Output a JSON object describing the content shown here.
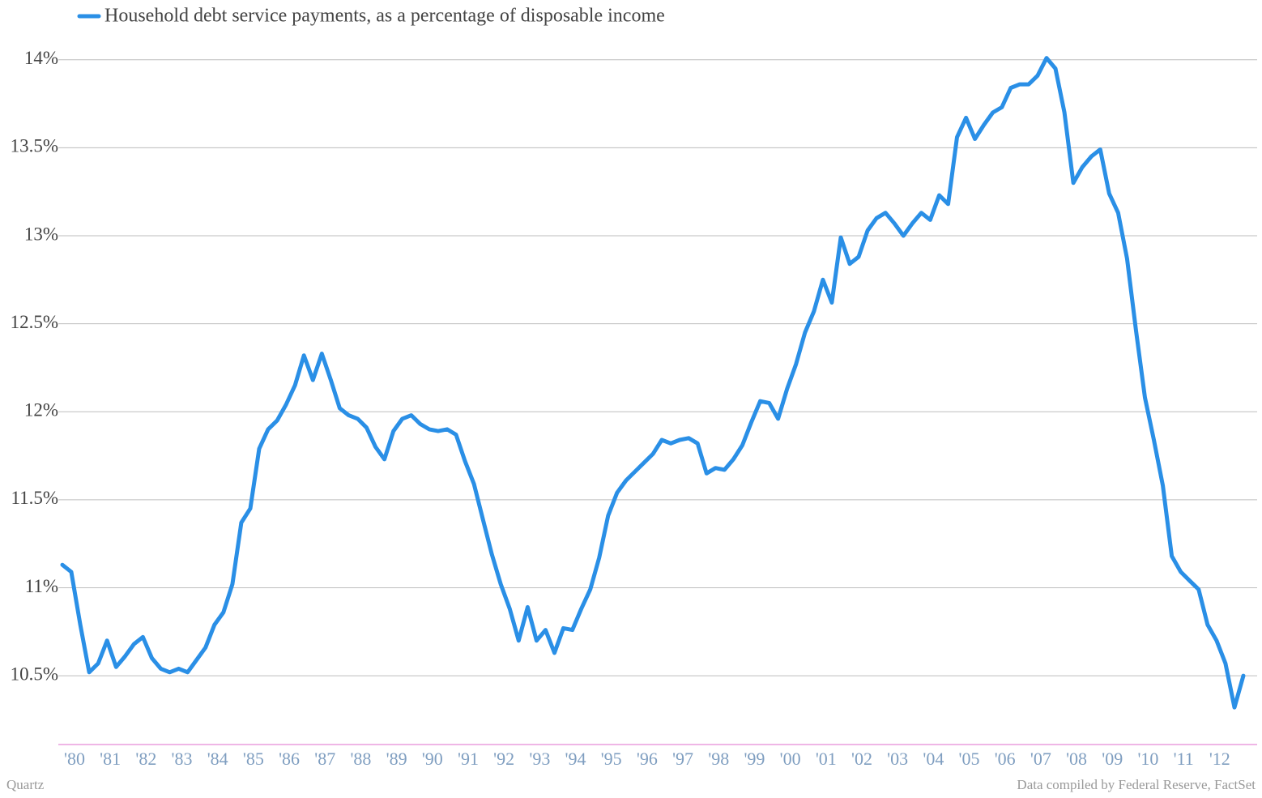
{
  "chart_data": {
    "type": "line",
    "series": [
      {
        "name": "Household debt service payments, as a percentage of disposable income",
        "color": "#2a8fe6",
        "values": [
          11.13,
          11.09,
          10.79,
          10.52,
          10.57,
          10.7,
          10.55,
          10.61,
          10.68,
          10.72,
          10.6,
          10.54,
          10.52,
          10.54,
          10.52,
          10.59,
          10.66,
          10.79,
          10.86,
          11.02,
          11.37,
          11.45,
          11.79,
          11.9,
          11.95,
          12.04,
          12.15,
          12.32,
          12.18,
          12.33,
          12.18,
          12.02,
          11.98,
          11.96,
          11.91,
          11.8,
          11.73,
          11.89,
          11.96,
          11.98,
          11.93,
          11.9,
          11.89,
          11.9,
          11.87,
          11.72,
          11.59,
          11.39,
          11.19,
          11.02,
          10.88,
          10.7,
          10.89,
          10.7,
          10.76,
          10.63,
          10.77,
          10.76,
          10.88,
          10.99,
          11.17,
          11.41,
          11.54,
          11.61,
          11.66,
          11.71,
          11.76,
          11.84,
          11.82,
          11.84,
          11.85,
          11.82,
          11.65,
          11.68,
          11.67,
          11.73,
          11.81,
          11.94,
          12.06,
          12.05,
          11.96,
          12.13,
          12.27,
          12.45,
          12.57,
          12.75,
          12.62,
          12.99,
          12.84,
          12.88,
          13.03,
          13.1,
          13.13,
          13.07,
          13.0,
          13.07,
          13.13,
          13.09,
          13.23,
          13.18,
          13.56,
          13.67,
          13.55,
          13.63,
          13.7,
          13.73,
          13.84,
          13.86,
          13.86,
          13.91,
          14.01,
          13.95,
          13.7,
          13.3,
          13.39,
          13.45,
          13.49,
          13.24,
          13.13,
          12.87,
          12.46,
          12.08,
          11.84,
          11.58,
          11.18,
          11.09,
          11.04,
          10.99,
          10.79,
          10.7,
          10.57,
          10.32,
          10.5
        ]
      }
    ],
    "categories": [
      "'80",
      null,
      null,
      null,
      "'81",
      null,
      null,
      null,
      "'82",
      null,
      null,
      null,
      "'83",
      null,
      null,
      null,
      "'84",
      null,
      null,
      null,
      "'85",
      null,
      null,
      null,
      "'86",
      null,
      null,
      null,
      "'87",
      null,
      null,
      null,
      "'88",
      null,
      null,
      null,
      "'89",
      null,
      null,
      null,
      "'90",
      null,
      null,
      null,
      "'91",
      null,
      null,
      null,
      "'92",
      null,
      null,
      null,
      "'93",
      null,
      null,
      null,
      "'94",
      null,
      null,
      null,
      "'95",
      null,
      null,
      null,
      "'96",
      null,
      null,
      null,
      "'97",
      null,
      null,
      null,
      "'98",
      null,
      null,
      null,
      "'99",
      null,
      null,
      null,
      "'00",
      null,
      null,
      null,
      "'01",
      null,
      null,
      null,
      "'02",
      null,
      null,
      null,
      "'03",
      null,
      null,
      null,
      "'04",
      null,
      null,
      null,
      "'05",
      null,
      null,
      null,
      "'06",
      null,
      null,
      null,
      "'07",
      null,
      null,
      null,
      "'08",
      null,
      null,
      null,
      "'09",
      null,
      null,
      null,
      "'10",
      null,
      null,
      null,
      "'11",
      null,
      null,
      null,
      "'12",
      null,
      null,
      null,
      null
    ],
    "ylim": [
      10.1,
      14.1
    ],
    "yticks": [
      {
        "value": 10.5,
        "label": "10.5%"
      },
      {
        "value": 11,
        "label": "11%"
      },
      {
        "value": 11.5,
        "label": "11.5%"
      },
      {
        "value": 12,
        "label": "12%"
      },
      {
        "value": 12.5,
        "label": "12.5%"
      },
      {
        "value": 13,
        "label": "13%"
      },
      {
        "value": 13.5,
        "label": "13.5%"
      },
      {
        "value": 14,
        "label": "14%"
      }
    ],
    "grid": true,
    "source_left": "Quartz",
    "source_right": "Data compiled by Federal Reserve, FactSet"
  }
}
